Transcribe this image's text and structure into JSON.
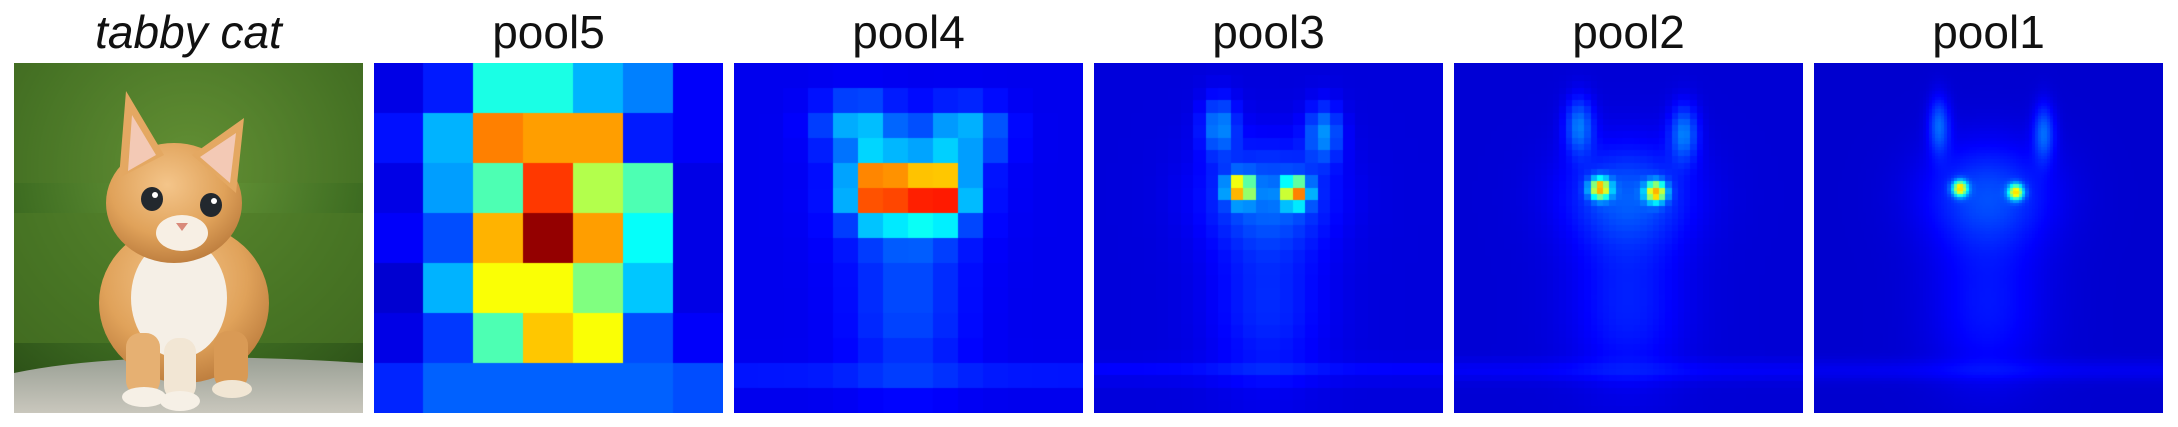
{
  "panels": [
    {
      "title": "tabby cat",
      "kind": "photo"
    },
    {
      "title": "pool5",
      "kind": "heatmap",
      "grid_size": 7,
      "grid": [
        [
          0.1,
          0.15,
          0.4,
          0.4,
          0.3,
          0.25,
          0.12
        ],
        [
          0.14,
          0.3,
          0.75,
          0.72,
          0.72,
          0.15,
          0.12
        ],
        [
          0.1,
          0.28,
          0.45,
          0.82,
          0.55,
          0.45,
          0.1
        ],
        [
          0.12,
          0.2,
          0.7,
          0.98,
          0.72,
          0.38,
          0.1
        ],
        [
          0.08,
          0.3,
          0.62,
          0.62,
          0.5,
          0.32,
          0.1
        ],
        [
          0.1,
          0.18,
          0.45,
          0.68,
          0.62,
          0.2,
          0.12
        ],
        [
          0.16,
          0.22,
          0.22,
          0.22,
          0.22,
          0.22,
          0.2
        ]
      ]
    },
    {
      "title": "pool4",
      "kind": "heatmap",
      "grid_size": 14
    },
    {
      "title": "pool3",
      "kind": "heatmap",
      "grid_size": 28
    },
    {
      "title": "pool2",
      "kind": "heatmap",
      "grid_size": 56
    },
    {
      "title": "pool1",
      "kind": "heatmap",
      "grid_size": 112
    }
  ]
}
